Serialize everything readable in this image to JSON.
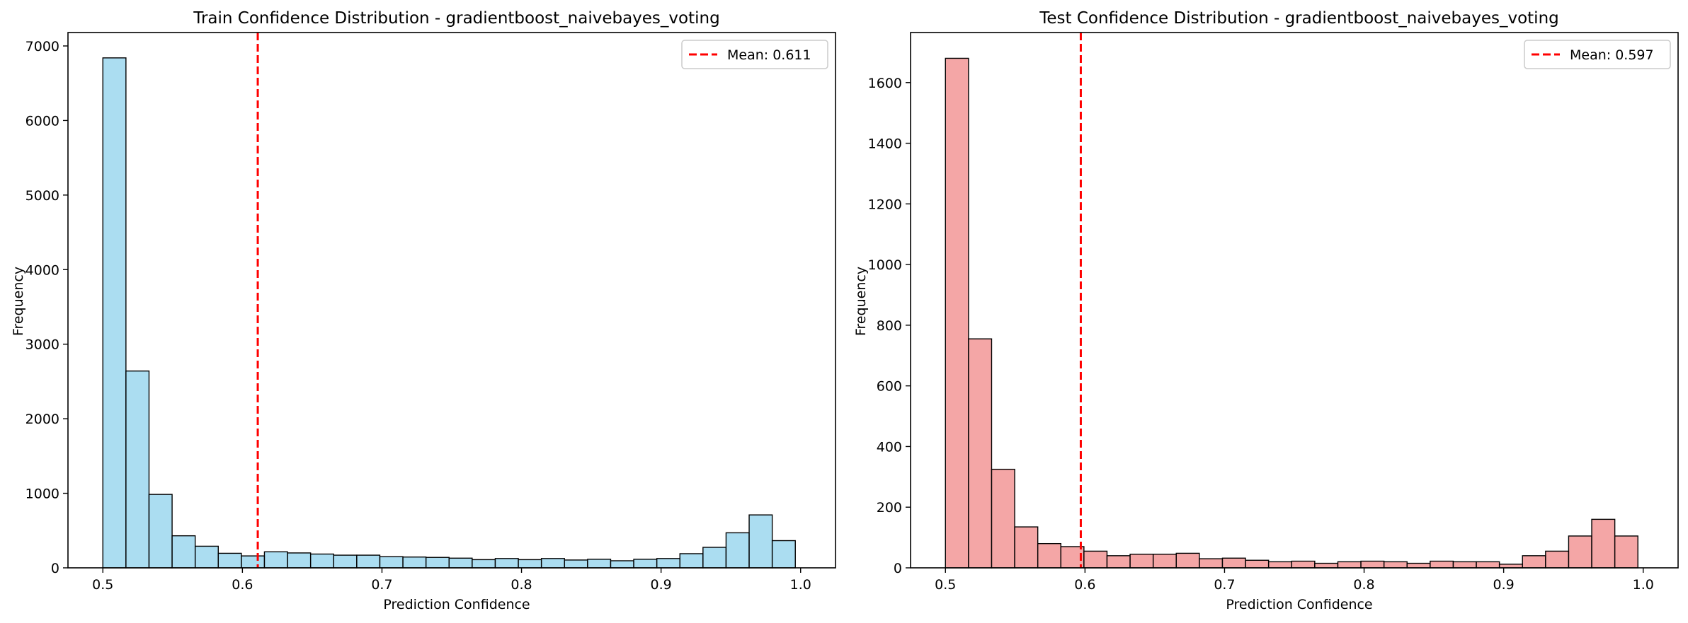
{
  "chart_data": [
    {
      "type": "bar",
      "title": "Train Confidence Distribution - gradientboost_naivebayes_voting",
      "xlabel": "Prediction Confidence",
      "ylabel": "Frequency",
      "xlim": [
        0.475,
        1.025
      ],
      "ylim": [
        0,
        7180
      ],
      "xticks": [
        0.5,
        0.6,
        0.7,
        0.8,
        0.9,
        1.0
      ],
      "xtick_labels": [
        "0.5",
        "0.6",
        "0.7",
        "0.8",
        "0.9",
        "1.0"
      ],
      "yticks": [
        0,
        1000,
        2000,
        3000,
        4000,
        5000,
        6000,
        7000
      ],
      "ytick_labels": [
        "0",
        "1000",
        "2000",
        "3000",
        "4000",
        "5000",
        "6000",
        "7000"
      ],
      "bin_start": 0.5,
      "bin_width": 0.01654,
      "values": [
        6840,
        2640,
        985,
        430,
        290,
        195,
        160,
        215,
        200,
        185,
        170,
        170,
        150,
        145,
        140,
        130,
        110,
        125,
        110,
        125,
        105,
        115,
        95,
        115,
        125,
        190,
        275,
        470,
        710,
        365
      ],
      "bar_color": "#87ceeb",
      "bar_edge_color": "#000000",
      "mean_line": {
        "value": 0.611,
        "label": "Mean: 0.611",
        "color": "#ff0000",
        "style": "dashed"
      },
      "legend_position": "top-right",
      "grid": false
    },
    {
      "type": "bar",
      "title": "Test Confidence Distribution - gradientboost_naivebayes_voting",
      "xlabel": "Prediction Confidence",
      "ylabel": "Frequency",
      "xlim": [
        0.475,
        1.025
      ],
      "ylim": [
        0,
        1765
      ],
      "xticks": [
        0.5,
        0.6,
        0.7,
        0.8,
        0.9,
        1.0
      ],
      "xtick_labels": [
        "0.5",
        "0.6",
        "0.7",
        "0.8",
        "0.9",
        "1.0"
      ],
      "yticks": [
        0,
        200,
        400,
        600,
        800,
        1000,
        1200,
        1400,
        1600
      ],
      "ytick_labels": [
        "0",
        "200",
        "400",
        "600",
        "800",
        "1000",
        "1200",
        "1400",
        "1600"
      ],
      "bin_start": 0.5,
      "bin_width": 0.01654,
      "values": [
        1680,
        755,
        325,
        135,
        80,
        70,
        55,
        40,
        45,
        45,
        48,
        30,
        32,
        25,
        20,
        22,
        15,
        20,
        22,
        20,
        15,
        22,
        20,
        20,
        12,
        40,
        55,
        105,
        160,
        105
      ],
      "bar_color": "#f08080",
      "bar_edge_color": "#000000",
      "mean_line": {
        "value": 0.597,
        "label": "Mean: 0.597",
        "color": "#ff0000",
        "style": "dashed"
      },
      "legend_position": "top-right",
      "grid": false
    }
  ]
}
